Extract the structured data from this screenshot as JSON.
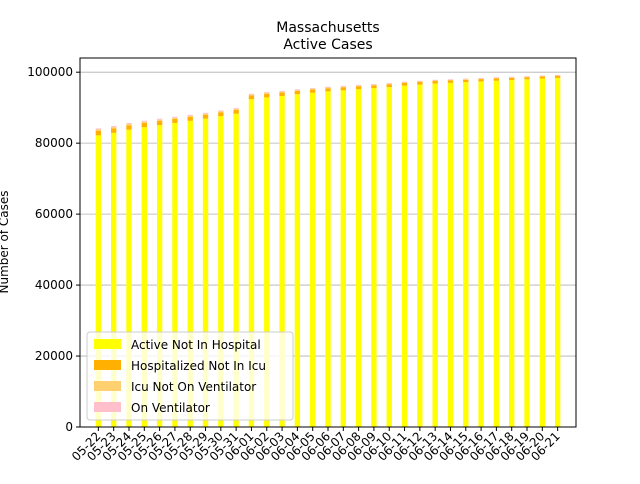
{
  "chart_data": {
    "type": "bar",
    "stacked": true,
    "title": "Massachusetts",
    "subtitle": "Active Cases",
    "xlabel": "",
    "ylabel": "Number of Cases",
    "ylim": [
      0,
      104000
    ],
    "yticks": [
      0,
      20000,
      40000,
      60000,
      80000,
      100000
    ],
    "grid": "y",
    "legend_position": "lower-left",
    "categories": [
      "05-22",
      "05-23",
      "05-24",
      "05-25",
      "05-26",
      "05-27",
      "05-28",
      "05-29",
      "05-30",
      "05-31",
      "06-01",
      "06-02",
      "06-03",
      "06-04",
      "06-05",
      "06-06",
      "06-07",
      "06-08",
      "06-09",
      "06-10",
      "06-11",
      "06-12",
      "06-13",
      "06-14",
      "06-15",
      "06-16",
      "06-17",
      "06-18",
      "06-19",
      "06-20",
      "06-21"
    ],
    "series": [
      {
        "name": "Active Not In Hospital",
        "color": "#ffff00",
        "values": [
          82200,
          82900,
          83800,
          84500,
          85100,
          85700,
          86300,
          86900,
          87600,
          88300,
          92400,
          92900,
          93300,
          93800,
          94200,
          94600,
          94900,
          95200,
          95500,
          95800,
          96200,
          96500,
          96800,
          97000,
          97200,
          97400,
          97600,
          97800,
          98000,
          98200,
          98400
        ]
      },
      {
        "name": "Hospitalized Not In Icu",
        "color": "#ffb000",
        "values": [
          1300,
          1280,
          1250,
          1220,
          1200,
          1170,
          1140,
          1110,
          1080,
          1050,
          1020,
          990,
          960,
          930,
          900,
          870,
          840,
          820,
          800,
          780,
          760,
          740,
          720,
          700,
          680,
          660,
          640,
          620,
          600,
          580,
          560
        ]
      },
      {
        "name": "Icu Not On Ventilator",
        "color": "#ffd070",
        "values": [
          350,
          340,
          330,
          320,
          310,
          300,
          290,
          280,
          270,
          260,
          250,
          240,
          230,
          220,
          210,
          200,
          190,
          180,
          170,
          165,
          160,
          155,
          150,
          145,
          140,
          135,
          130,
          125,
          120,
          115,
          110
        ]
      },
      {
        "name": "On Ventilator",
        "color": "#ffc0cb",
        "values": [
          300,
          295,
          290,
          285,
          280,
          275,
          270,
          265,
          260,
          255,
          250,
          245,
          240,
          235,
          230,
          225,
          220,
          215,
          210,
          205,
          200,
          195,
          190,
          185,
          180,
          175,
          170,
          165,
          160,
          155,
          150
        ]
      }
    ]
  }
}
